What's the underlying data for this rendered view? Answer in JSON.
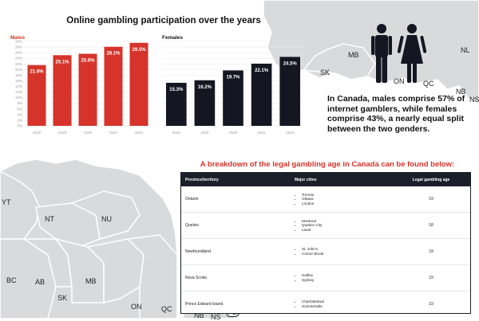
{
  "main_title": "Online gambling participation over the years",
  "colors": {
    "males": "#d6342b",
    "females": "#141722",
    "title_accent": "#d6342b",
    "map": "#d9dadb"
  },
  "chart_data": [
    {
      "type": "bar",
      "panel": "Males",
      "categories": [
        "2018",
        "2019",
        "2020",
        "2021",
        "2022"
      ],
      "values": [
        21.6,
        25.1,
        25.6,
        28.1,
        29.5
      ],
      "value_labels": [
        "21.6%",
        "25.1%",
        "25.6%",
        "28.1%",
        "29.5%"
      ],
      "ylim": [
        0,
        30
      ],
      "yticks": [
        "0%",
        "2%",
        "4%",
        "6%",
        "8%",
        "10%",
        "12%",
        "14%",
        "16%",
        "18%",
        "20%",
        "22%",
        "24%",
        "26%",
        "28%",
        "30%"
      ],
      "grid": true
    },
    {
      "type": "bar",
      "panel": "Females",
      "categories": [
        "2018",
        "2019",
        "2020",
        "2021",
        "2022"
      ],
      "values": [
        15.3,
        16.2,
        19.7,
        22.1,
        24.5
      ],
      "value_labels": [
        "15.3%",
        "16.2%",
        "19.7%",
        "22.1%",
        "24.5%"
      ],
      "ylim": [
        0,
        30
      ],
      "grid": true
    }
  ],
  "stat_text": "In Canada, males comprise 57% of internet gamblers, while females comprise 43%, a nearly equal split between the two genders.",
  "breakdown_title": "A breakdown of the legal gambling age in Canada can be found below:",
  "table": {
    "headers": [
      "Province/territory",
      "Major cities",
      "Legal gambling age"
    ],
    "rows": [
      {
        "province": "Ontario",
        "cities": [
          "Toronto",
          "Ottawa",
          "London"
        ],
        "age": "19"
      },
      {
        "province": "Quebec",
        "cities": [
          "Montreal",
          "Quebec City",
          "Laval"
        ],
        "age": "18"
      },
      {
        "province": "Newfoundland",
        "cities": [
          "St. John's",
          "Corner Brook"
        ],
        "age": "19"
      },
      {
        "province": "Nova Scotia",
        "cities": [
          "Halifax",
          "Sydney"
        ],
        "age": "19"
      },
      {
        "province": "Prince Edward Island",
        "cities": [
          "Charlottetown",
          "Summerside"
        ],
        "age": "19"
      }
    ]
  },
  "map_labels": {
    "top": [
      "MB",
      "SK",
      "ON",
      "QC",
      "NL",
      "NB",
      "NS"
    ],
    "bottom": [
      "YT",
      "NT",
      "NU",
      "BC",
      "AB",
      "MB",
      "SK",
      "ON",
      "QC",
      "NB",
      "NS",
      "PE"
    ]
  }
}
